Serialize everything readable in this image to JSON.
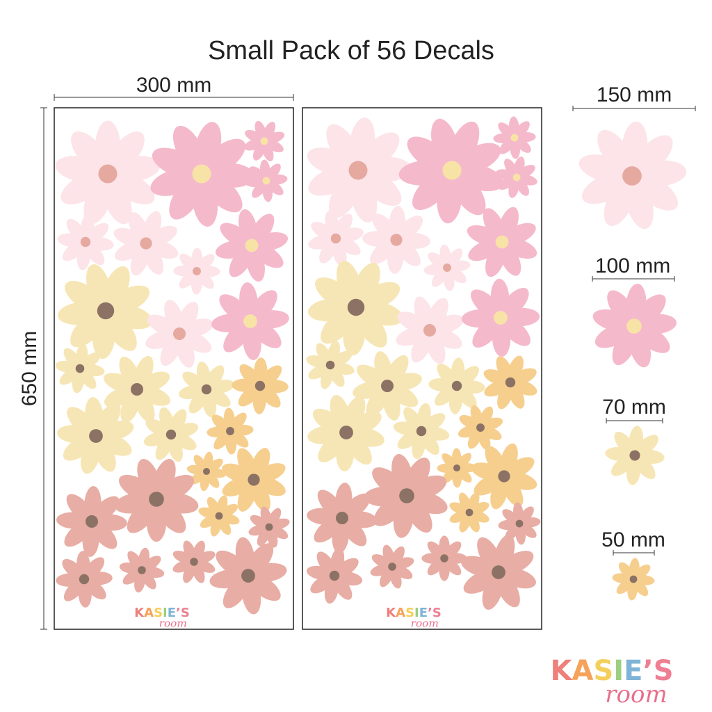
{
  "title": "Small Pack of 56 Decals",
  "sheet": {
    "width_label": "300 mm",
    "height_label": "650 mm"
  },
  "sizes": [
    {
      "label": "150 mm"
    },
    {
      "label": "100 mm"
    },
    {
      "label": "70 mm"
    },
    {
      "label": "50 mm"
    }
  ],
  "brand": {
    "letters": [
      "K",
      "A",
      "S",
      "I",
      "E",
      "’",
      "S"
    ],
    "tagline": "room"
  }
}
